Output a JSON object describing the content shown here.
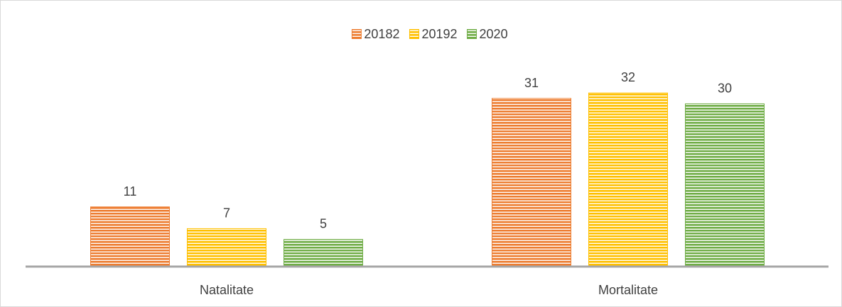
{
  "chart_data": {
    "type": "bar",
    "categories": [
      "Natalitate",
      "Mortalitate"
    ],
    "series": [
      {
        "name": "20182",
        "values": [
          11,
          31
        ],
        "color": "#ed7d31"
      },
      {
        "name": "20192",
        "values": [
          7,
          32
        ],
        "color": "#ffc000"
      },
      {
        "name": "2020",
        "values": [
          5,
          30
        ],
        "color": "#70ad47"
      }
    ],
    "ylim": [
      0,
      34.5
    ],
    "grid": false,
    "legend_position": "top-center",
    "fill_pattern": "horizontal-stripes"
  }
}
